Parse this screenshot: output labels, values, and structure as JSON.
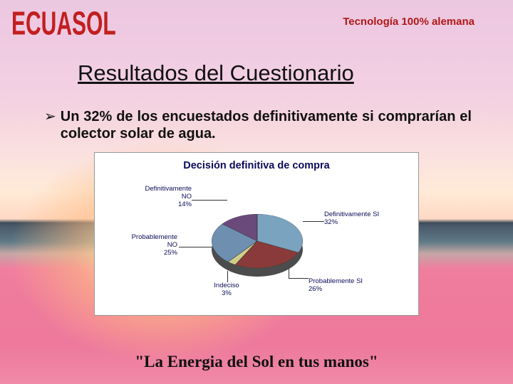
{
  "brand": {
    "logo": "ECUASOL",
    "logo_color": "#c21f1f"
  },
  "tagline": {
    "text": "Tecnología 100% alemana",
    "color": "#b01818"
  },
  "title": {
    "text": "Resultados del Cuestionario",
    "color": "#111111"
  },
  "bullet": {
    "marker": "➢",
    "text": "Un 32% de los encuestados definitivamente si comprarían el colector solar de agua.",
    "color": "#111111"
  },
  "chart": {
    "type": "pie",
    "title": "Decisión definitiva de compra",
    "title_color": "#0b0b58",
    "background_color": "#ffffff",
    "border_color": "#9a9a9a",
    "label_fontsize": 9.5,
    "label_color": "#0b0b58",
    "slices": [
      {
        "label_line1": "Definitivamente SI",
        "label_line2": "32%",
        "value": 32,
        "color": "#7aa3c0"
      },
      {
        "label_line1": "Probablemente SI",
        "label_line2": "26%",
        "value": 26,
        "color": "#8a3a3a"
      },
      {
        "label_line1": "Indeciso",
        "label_line2": "3%",
        "value": 3,
        "color": "#cfcf8a"
      },
      {
        "label_line1": "Probablemente",
        "label_mid": "NO",
        "label_line2": "25%",
        "value": 25,
        "color": "#6f8fb0"
      },
      {
        "label_line1": "Definitivamente",
        "label_mid": "NO",
        "label_line2": "14%",
        "value": 14,
        "color": "#6a4a7a"
      }
    ],
    "depth_color": "#5a5a5a"
  },
  "quote": {
    "text": "\"La Energia del Sol en tus manos\"",
    "color": "#111111"
  }
}
